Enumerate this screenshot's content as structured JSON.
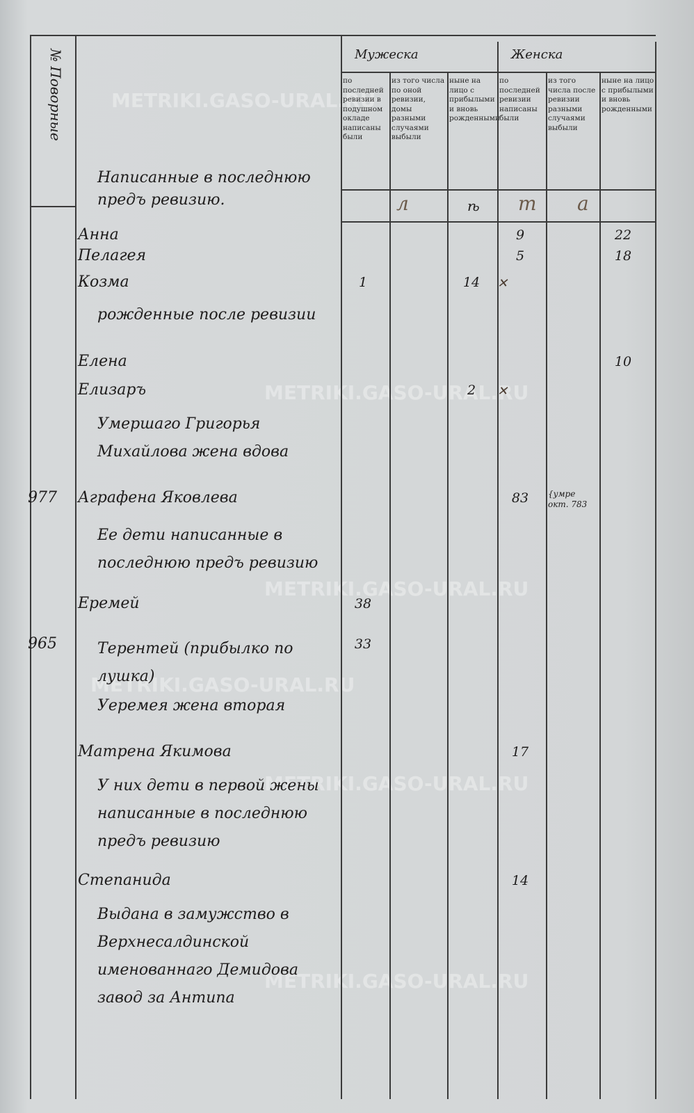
{
  "watermark": "METRIKI.GASO-URAL.RU",
  "header": {
    "yard_no": "№ Поворные",
    "section_title": "Написанные в последнюю предъ ревизию.",
    "male": "Мужеска",
    "female": "Женска",
    "male_cols": [
      "по последней ревизии в подушном окладе написаны были",
      "из того числа по оной ревизии, домы разными случаями выбыли",
      "ныне на лицо с прибылыми и вновь рожденными"
    ],
    "female_cols": [
      "по последней ревизии написаны были",
      "из того числа после ревизии разными случаями выбыли",
      "ныне на лицо с прибылыми и вновь рожденными"
    ],
    "years_label": [
      "л",
      "ѣ",
      "т",
      "а"
    ]
  },
  "rows": [
    {
      "no": "",
      "text": "Анна",
      "f1": "9",
      "f3": "22"
    },
    {
      "no": "",
      "text": "Пелагея",
      "f1": "5",
      "f3": "18"
    },
    {
      "no": "",
      "text": "Козма",
      "m1": "1",
      "m3": "14",
      "mark": "✕"
    },
    {
      "no": "",
      "text": "рожденные после ревизии"
    },
    {
      "no": "",
      "text": "Елена",
      "f3": "10"
    },
    {
      "no": "",
      "text": "Елизаръ",
      "m3": "2",
      "mark": "✕"
    },
    {
      "no": "",
      "text": "Умершаго Григорья Михайлова жена вдова"
    },
    {
      "no": "977",
      "text": "Аграфена Яковлева",
      "f1": "83",
      "note": "{умре окт. 783"
    },
    {
      "no": "",
      "text": "Ее дети написанные в последнюю предъ ревизию"
    },
    {
      "no": "",
      "text": "Еремей",
      "m1": "38"
    },
    {
      "no": "965",
      "text": "Терентей (прибылко по лушка)",
      "m1": "33"
    },
    {
      "no": "",
      "text": "Уеремея жена вторая"
    },
    {
      "no": "",
      "text": "Матрена Якимова",
      "f1": "17"
    },
    {
      "no": "",
      "text": "У них дети в первой жены написанные в последнюю предъ ревизию"
    },
    {
      "no": "",
      "text": "Степанида",
      "f1": "14"
    },
    {
      "no": "",
      "text": "Выдана в замужство в Верхнесалдинской именованнаго Демидова завод за Антипа"
    }
  ]
}
